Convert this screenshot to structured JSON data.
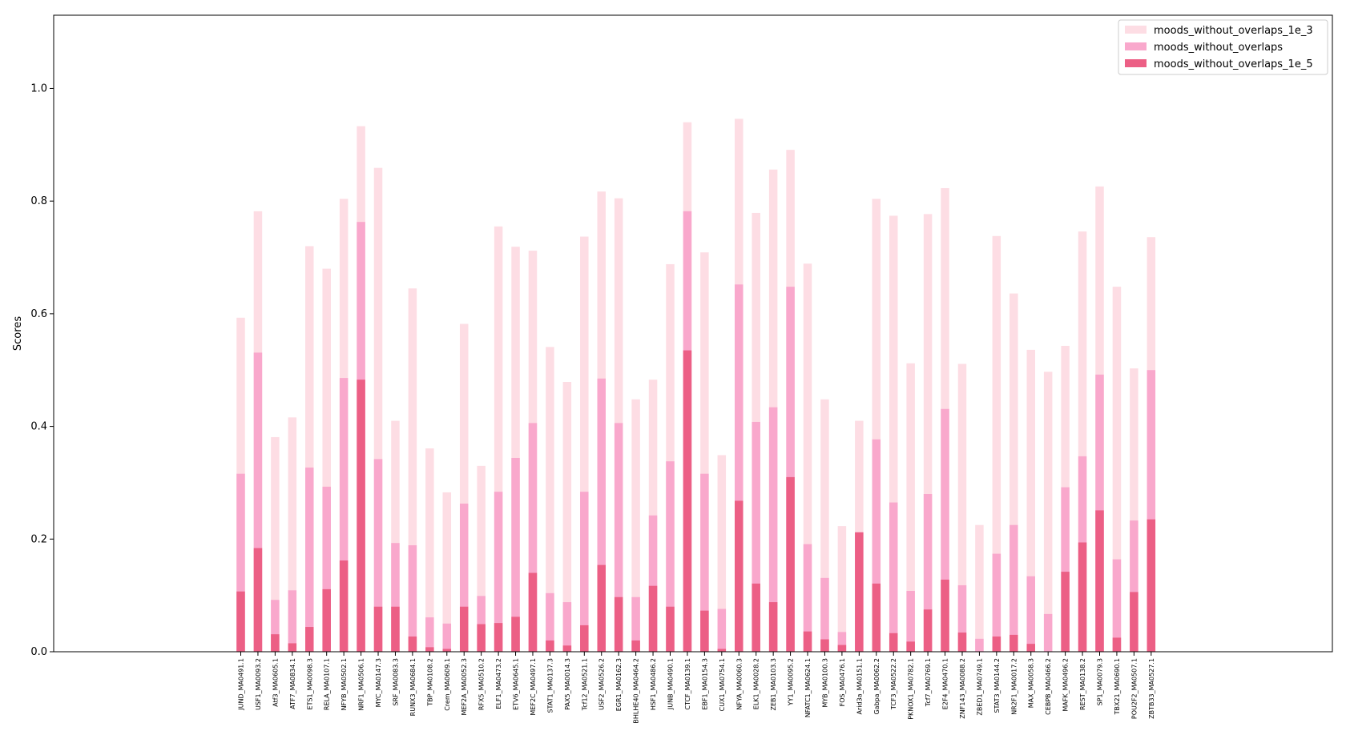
{
  "chart_data": {
    "type": "bar",
    "ylabel": "Scores",
    "xlabel": "",
    "ylim": [
      0.0,
      1.13
    ],
    "yticks": [
      "0.0",
      "0.2",
      "0.4",
      "0.6",
      "0.8",
      "1.0"
    ],
    "legend_position": "top-right",
    "categories": [
      "JUND_MA0491.1",
      "USF1_MA0093.2",
      "Atf3_MA0605.1",
      "ATF7_MA0834.1",
      "ETS1_MA0098.3",
      "RELA_MA0107.1",
      "NFYB_MA0502.1",
      "NRF1_MA0506.1",
      "MYC_MA0147.3",
      "SRF_MA0083.3",
      "RUNX3_MA0684.1",
      "TBP_MA0108.2",
      "Crem_MA0609.1",
      "MEF2A_MA0052.3",
      "RFX5_MA0510.2",
      "ELF1_MA0473.2",
      "ETV6_MA0645.1",
      "MEF2C_MA0497.1",
      "STAT1_MA0137.3",
      "PAX5_MA0014.3",
      "Tcf12_MA0521.1",
      "USF2_MA0526.2",
      "EGR1_MA0162.3",
      "BHLHE40_MA0464.2",
      "HSF1_MA0486.2",
      "JUNB_MA0490.1",
      "CTCF_MA0139.1",
      "EBF1_MA0154.3",
      "CUX1_MA0754.1",
      "NFYA_MA0060.3",
      "ELK1_MA0028.2",
      "ZEB1_MA0103.3",
      "YY1_MA0095.2",
      "NFATC1_MA0624.1",
      "MYB_MA0100.3",
      "FOS_MA0476.1",
      "Arid3a_MA0151.1",
      "Gabpa_MA0062.2",
      "TCF3_MA0522.2",
      "PKNOX1_MA0782.1",
      "Tcf7_MA0769.1",
      "E2F4_MA0470.1",
      "ZNF143_MA0088.2",
      "ZBED1_MA0749.1",
      "STAT3_MA0144.2",
      "NR2F1_MA0017.2",
      "MAX_MA0058.3",
      "CEBPB_MA0466.2",
      "MAFK_MA0496.2",
      "REST_MA0138.2",
      "SP1_MA0079.3",
      "TBX21_MA0690.1",
      "POU2F2_MA0507.1",
      "ZBTB33_MA0527.1"
    ],
    "series": [
      {
        "name": "moods_without_overlaps_1e_3",
        "color": "#fddde4",
        "values": [
          0.593,
          0.782,
          0.381,
          0.416,
          0.72,
          0.68,
          0.804,
          0.933,
          0.859,
          0.41,
          0.645,
          0.361,
          0.283,
          0.582,
          0.33,
          0.755,
          0.719,
          0.712,
          0.541,
          0.479,
          0.737,
          0.817,
          0.805,
          0.448,
          0.483,
          0.688,
          0.94,
          0.709,
          0.349,
          0.946,
          0.779,
          0.856,
          0.891,
          0.689,
          0.448,
          0.223,
          0.41,
          0.804,
          0.774,
          0.512,
          0.777,
          0.823,
          0.511,
          0.225,
          0.738,
          0.636,
          0.536,
          0.497,
          0.543,
          0.746,
          0.826,
          0.648,
          0.503,
          0.736
        ]
      },
      {
        "name": "moods_without_overlaps",
        "color": "#f9a8cc",
        "values": [
          0.316,
          0.531,
          0.092,
          0.109,
          0.327,
          0.293,
          0.486,
          0.763,
          0.342,
          0.193,
          0.189,
          0.061,
          0.05,
          0.263,
          0.099,
          0.284,
          0.344,
          0.406,
          0.104,
          0.088,
          0.284,
          0.485,
          0.406,
          0.097,
          0.242,
          0.338,
          0.782,
          0.316,
          0.076,
          0.652,
          0.408,
          0.434,
          0.648,
          0.191,
          0.131,
          0.035,
          0.212,
          0.377,
          0.265,
          0.108,
          0.28,
          0.431,
          0.118,
          0.023,
          0.174,
          0.225,
          0.134,
          0.067,
          0.292,
          0.347,
          0.492,
          0.164,
          0.233,
          0.5
        ]
      },
      {
        "name": "moods_without_overlaps_1e_5",
        "color": "#ec5f85",
        "values": [
          0.107,
          0.184,
          0.031,
          0.015,
          0.044,
          0.111,
          0.162,
          0.483,
          0.08,
          0.08,
          0.027,
          0.008,
          0.005,
          0.08,
          0.049,
          0.051,
          0.062,
          0.14,
          0.02,
          0.011,
          0.047,
          0.154,
          0.097,
          0.02,
          0.117,
          0.08,
          0.535,
          0.073,
          0.005,
          0.268,
          0.121,
          0.088,
          0.31,
          0.036,
          0.022,
          0.012,
          0.212,
          0.121,
          0.033,
          0.018,
          0.075,
          0.128,
          0.034,
          0.0,
          0.027,
          0.03,
          0.014,
          0.0,
          0.142,
          0.194,
          0.251,
          0.025,
          0.106,
          0.235
        ]
      }
    ]
  }
}
